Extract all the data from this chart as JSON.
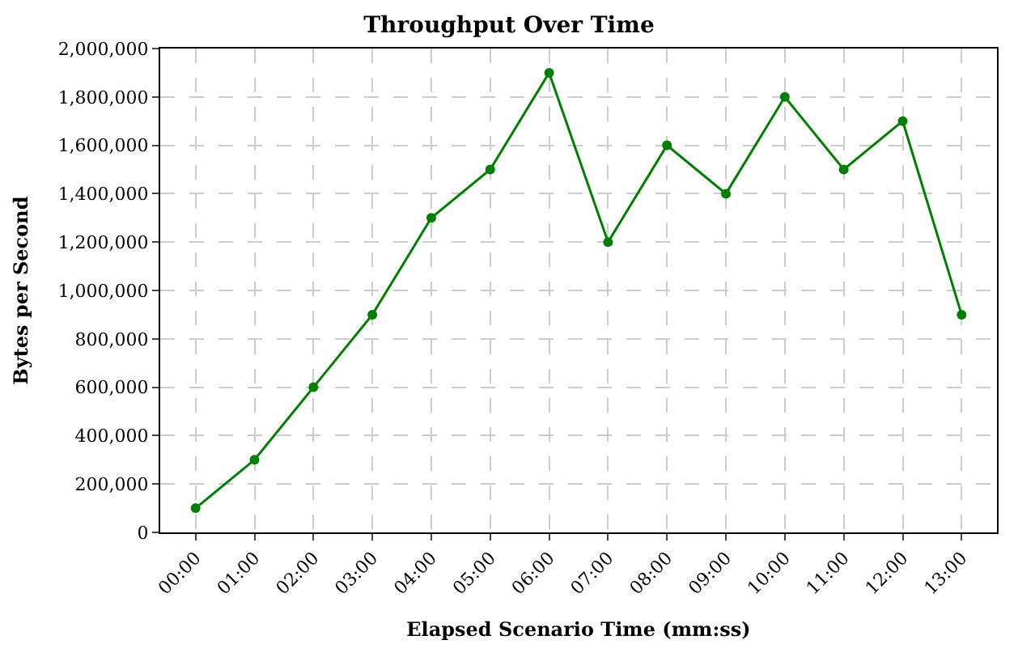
{
  "chart_data": {
    "type": "line",
    "title": "Throughput Over Time",
    "xlabel": "Elapsed Scenario Time (mm:ss)",
    "ylabel": "Bytes per Second",
    "categories": [
      "00:00",
      "01:00",
      "02:00",
      "03:00",
      "04:00",
      "05:00",
      "06:00",
      "07:00",
      "08:00",
      "09:00",
      "10:00",
      "11:00",
      "12:00",
      "13:00"
    ],
    "series": [
      {
        "color": "#008000",
        "values": [
          100000,
          300000,
          600000,
          900000,
          1300000,
          1500000,
          1900000,
          1200000,
          1600000,
          1400000,
          1800000,
          1500000,
          1700000,
          900000
        ]
      }
    ],
    "ylim": [
      0,
      2000000
    ],
    "yticks": [
      0,
      {
        "value": 200000,
        "label": "200,000"
      },
      {
        "value": 400000,
        "label": "400,000"
      },
      {
        "value": 600000,
        "label": "600,000"
      },
      {
        "value": 800000,
        "label": "800,000"
      },
      {
        "value": 1000000,
        "label": "1,000,000"
      },
      {
        "value": 1200000,
        "label": "1,200,000"
      },
      {
        "value": 1400000,
        "label": "1,400,000"
      },
      {
        "value": 1600000,
        "label": "1,600,000"
      },
      {
        "value": 1800000,
        "label": "1,800,000"
      },
      {
        "value": 2000000,
        "label": "2,000,000"
      }
    ],
    "grid": true,
    "marker": "circle",
    "line_style": "solid"
  }
}
